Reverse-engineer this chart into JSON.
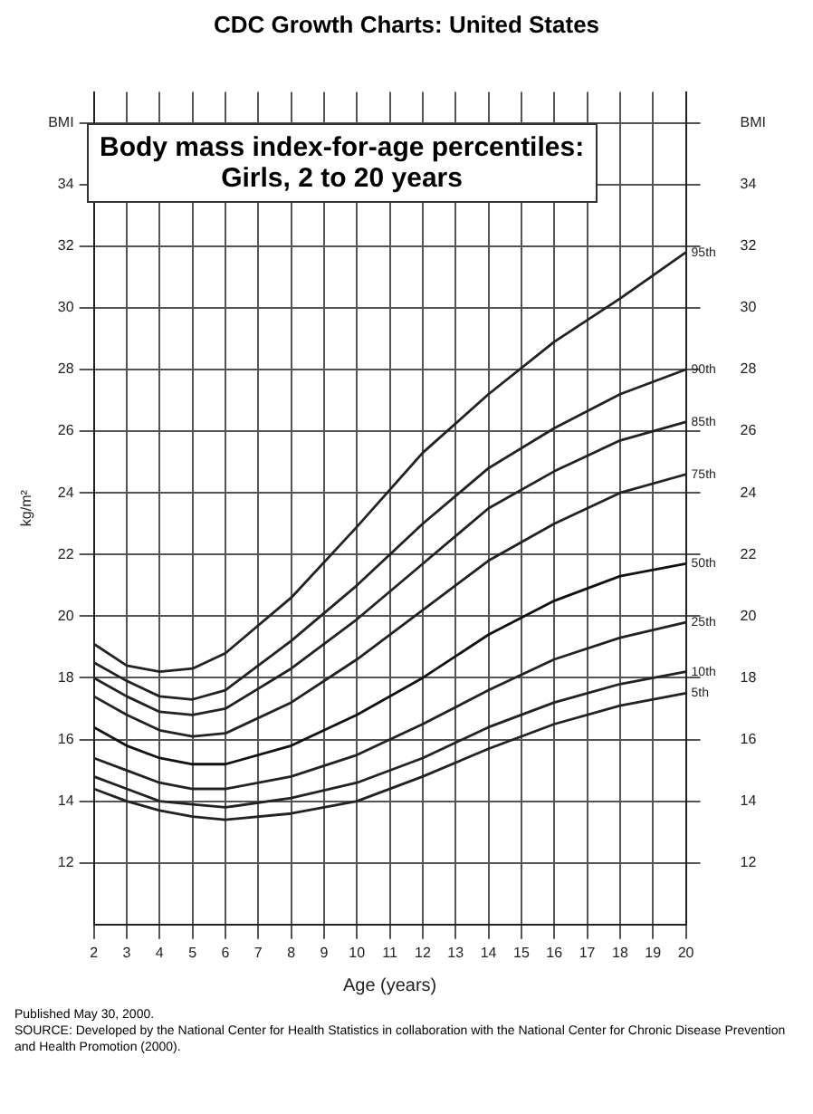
{
  "chart_data": {
    "type": "line",
    "title": "CDC Growth Charts: United States",
    "subtitle": "Body mass index-for-age percentiles:\nGirls, 2 to 20 years",
    "xlabel": "Age (years)",
    "ylabel": "kg/m²",
    "x": [
      2,
      3,
      4,
      5,
      6,
      8,
      10,
      12,
      14,
      16,
      18,
      20
    ],
    "series": [
      {
        "name": "95th",
        "color": "#222222",
        "values": [
          19.1,
          18.4,
          18.2,
          18.3,
          18.8,
          20.6,
          22.9,
          25.3,
          27.2,
          28.9,
          30.3,
          31.8
        ]
      },
      {
        "name": "90th",
        "color": "#222222",
        "values": [
          18.5,
          17.9,
          17.4,
          17.3,
          17.6,
          19.2,
          21.0,
          23.0,
          24.8,
          26.1,
          27.2,
          28.0
        ]
      },
      {
        "name": "85th",
        "color": "#222222",
        "values": [
          18.0,
          17.4,
          16.9,
          16.8,
          17.0,
          18.3,
          19.9,
          21.7,
          23.5,
          24.7,
          25.7,
          26.3
        ]
      },
      {
        "name": "75th",
        "color": "#222222",
        "values": [
          17.4,
          16.8,
          16.3,
          16.1,
          16.2,
          17.2,
          18.6,
          20.2,
          21.8,
          23.0,
          24.0,
          24.6
        ]
      },
      {
        "name": "50th",
        "color": "#111111",
        "values": [
          16.4,
          15.8,
          15.4,
          15.2,
          15.2,
          15.8,
          16.8,
          18.0,
          19.4,
          20.5,
          21.3,
          21.7
        ]
      },
      {
        "name": "25th",
        "color": "#222222",
        "values": [
          15.4,
          15.0,
          14.6,
          14.4,
          14.4,
          14.8,
          15.5,
          16.5,
          17.6,
          18.6,
          19.3,
          19.8
        ]
      },
      {
        "name": "10th",
        "color": "#222222",
        "values": [
          14.8,
          14.4,
          14.0,
          13.9,
          13.8,
          14.1,
          14.6,
          15.4,
          16.4,
          17.2,
          17.8,
          18.2
        ]
      },
      {
        "name": "5th",
        "color": "#222222",
        "values": [
          14.4,
          14.0,
          13.7,
          13.5,
          13.4,
          13.6,
          14.0,
          14.8,
          15.7,
          16.5,
          17.1,
          17.5
        ]
      }
    ],
    "xlim": [
      2,
      20
    ],
    "xticks": [
      2,
      3,
      4,
      5,
      6,
      7,
      8,
      9,
      10,
      11,
      12,
      13,
      14,
      15,
      16,
      17,
      18,
      19,
      20
    ],
    "ylim": [
      10,
      37
    ],
    "yticks": [
      12,
      14,
      16,
      18,
      20,
      22,
      24,
      26,
      28,
      30,
      32,
      34,
      {
        "value": 36,
        "label": "BMI"
      }
    ],
    "y2lim": [
      10,
      37
    ],
    "y2ticks": [
      12,
      14,
      16,
      18,
      20,
      22,
      24,
      26,
      28,
      30,
      32,
      34,
      {
        "value": 36,
        "label": "BMI"
      }
    ],
    "grid": true,
    "legend": false,
    "marker": "none",
    "line_style": "solid",
    "annotations": [
      "Published May 30, 2000.",
      "SOURCE: Developed by the National Center for Health Statistics in collaboration with the National Center for Chronic Disease Prevention and Health Promotion (2000)."
    ]
  }
}
